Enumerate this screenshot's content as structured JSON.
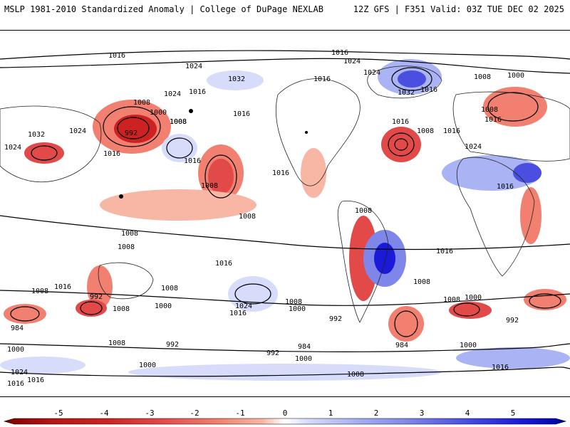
{
  "header": {
    "left": "MSLP 1981-2010 Standardized Anomaly | College of DuPage NEXLAB",
    "right": "12Z GFS | F351 Valid: 03Z TUE DEC 02 2025"
  },
  "isobar_labels": [
    "1016",
    "1024",
    "1016",
    "1024",
    "1008",
    "1000",
    "1024",
    "1032",
    "1016",
    "1024",
    "1032",
    "1016",
    "1008",
    "1000",
    "992",
    "1008",
    "1016",
    "1024",
    "1016",
    "1032",
    "1024",
    "1016",
    "1008",
    "1016",
    "1016",
    "1008",
    "1024",
    "1008",
    "1016",
    "1008",
    "1008",
    "1008",
    "1016",
    "1008",
    "1016",
    "1016",
    "1016",
    "1008",
    "1008",
    "1016",
    "992",
    "1008",
    "1024",
    "1016",
    "1008",
    "1000",
    "984",
    "992",
    "1008",
    "1000",
    "992",
    "984",
    "1000",
    "1016",
    "1008",
    "992",
    "1000",
    "992",
    "984",
    "1000",
    "1008",
    "1016",
    "1024",
    "1016",
    "1000",
    "1008",
    "1000",
    "1016",
    "1008"
  ],
  "colorbar": {
    "ticks": [
      "-5",
      "-4",
      "-3",
      "-2",
      "-1",
      "0",
      "1",
      "2",
      "3",
      "4",
      "5"
    ],
    "colors": {
      "neg5": "#7a0000",
      "neg4": "#cc2222",
      "neg3": "#e24a4a",
      "neg2": "#f28070",
      "neg1": "#f8b7a5",
      "zero": "#ffffff",
      "pos1": "#d7dcfa",
      "pos2": "#aab3f3",
      "pos3": "#7f86ea",
      "pos4": "#4b4fe0",
      "pos5": "#1a1ad8"
    }
  }
}
